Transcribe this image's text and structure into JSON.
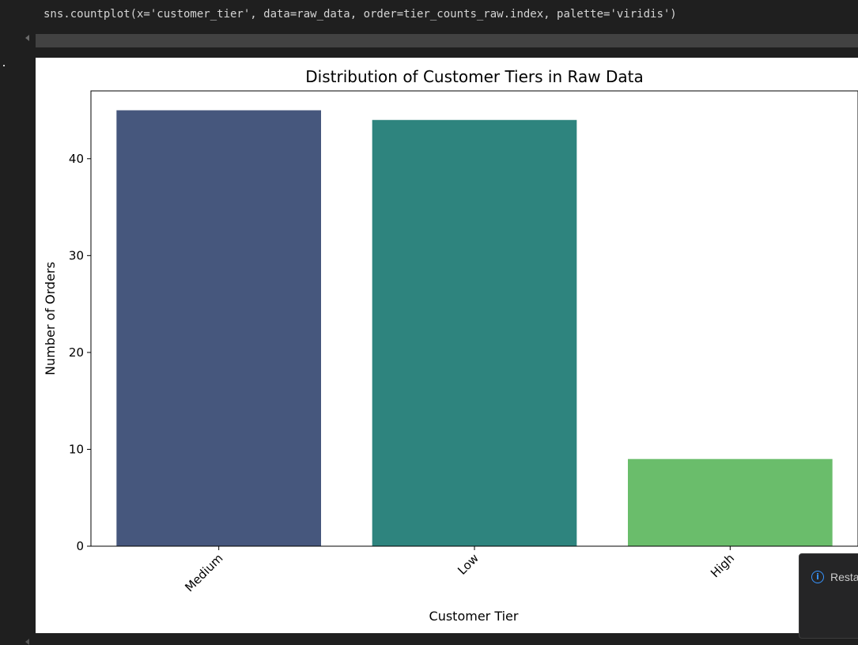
{
  "cell": {
    "code": "sns.countplot(x='customer_tier', data=raw_data, order=tier_counts_raw.index, palette='viridis')"
  },
  "toast": {
    "icon": "info-icon",
    "text": "Resta",
    "icon_color": "#3794ff"
  },
  "chart_data": {
    "type": "bar",
    "title": "Distribution of Customer Tiers in Raw Data",
    "xlabel": "Customer Tier",
    "ylabel": "Number of Orders",
    "categories": [
      "Medium",
      "Low",
      "High"
    ],
    "values": [
      45,
      44,
      9
    ],
    "colors": [
      "#46577d",
      "#2e847e",
      "#6abd6b"
    ],
    "ylim": [
      0,
      47
    ],
    "yticks": [
      0,
      10,
      20,
      30,
      40
    ],
    "xtick_rotation": 45,
    "grid": false,
    "legend": "none"
  }
}
